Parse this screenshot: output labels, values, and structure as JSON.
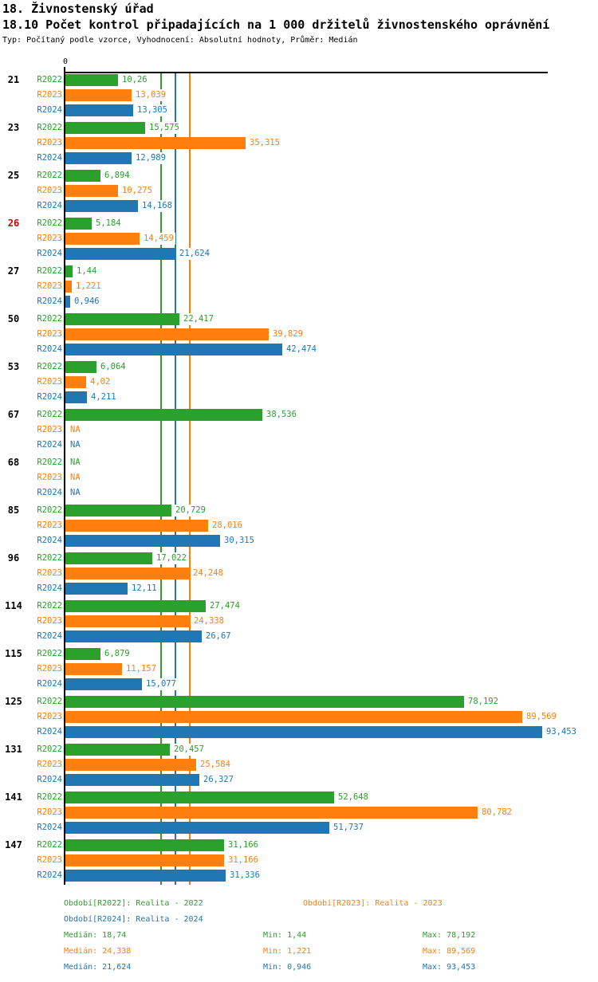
{
  "header": {
    "title": "18. Živnostenský úřad",
    "subtitle": "18.10 Počet kontrol připadajících na 1 000 držitelů živnostenského oprávnění",
    "meta": "Typ: Počítaný podle vzorce, Vyhodnocení: Absolutní hodnoty, Průměr: Medián"
  },
  "colors": {
    "r2022": "#2ca02c",
    "r2023": "#ff7f0e",
    "r2024": "#1f77b4",
    "highlight_group_label": "#d40000",
    "axis": "#000000"
  },
  "chart_data": {
    "type": "bar",
    "orientation": "horizontal",
    "axis_zero_label": "0",
    "xlim": [
      0,
      94.5
    ],
    "grid": false,
    "na_text": "NA",
    "series_names": [
      "R2022",
      "R2023",
      "R2024"
    ],
    "series_colors": [
      "#2ca02c",
      "#ff7f0e",
      "#1f77b4"
    ],
    "median_lines": [
      {
        "series": "R2022",
        "value": 18.74,
        "color": "#2ca02c"
      },
      {
        "series": "R2024",
        "value": 21.624,
        "color": "#1f77b4"
      },
      {
        "series": "R2023",
        "value": 24.338,
        "color": "#ff7f0e"
      }
    ],
    "groups": [
      {
        "label": "21",
        "highlight": false,
        "values": [
          10.26,
          13.039,
          13.305
        ],
        "display": [
          "10,26",
          "13,039",
          "13,305"
        ]
      },
      {
        "label": "23",
        "highlight": false,
        "values": [
          15.575,
          35.315,
          12.989
        ],
        "display": [
          "15,575",
          "35,315",
          "12,989"
        ]
      },
      {
        "label": "25",
        "highlight": false,
        "values": [
          6.894,
          10.275,
          14.168
        ],
        "display": [
          "6,894",
          "10,275",
          "14,168"
        ]
      },
      {
        "label": "26",
        "highlight": true,
        "values": [
          5.184,
          14.459,
          21.624
        ],
        "display": [
          "5,184",
          "14,459",
          "21,624"
        ]
      },
      {
        "label": "27",
        "highlight": false,
        "values": [
          1.44,
          1.221,
          0.946
        ],
        "display": [
          "1,44",
          "1,221",
          "0,946"
        ]
      },
      {
        "label": "50",
        "highlight": false,
        "values": [
          22.417,
          39.829,
          42.474
        ],
        "display": [
          "22,417",
          "39,829",
          "42,474"
        ]
      },
      {
        "label": "53",
        "highlight": false,
        "values": [
          6.064,
          4.02,
          4.211
        ],
        "display": [
          "6,064",
          "4,02",
          "4,211"
        ]
      },
      {
        "label": "67",
        "highlight": false,
        "values": [
          38.536,
          null,
          null
        ],
        "display": [
          "38,536",
          "NA",
          "NA"
        ]
      },
      {
        "label": "68",
        "highlight": false,
        "values": [
          null,
          null,
          null
        ],
        "display": [
          "NA",
          "NA",
          "NA"
        ]
      },
      {
        "label": "85",
        "highlight": false,
        "values": [
          20.729,
          28.016,
          30.315
        ],
        "display": [
          "20,729",
          "28,016",
          "30,315"
        ]
      },
      {
        "label": "96",
        "highlight": false,
        "values": [
          17.022,
          24.248,
          12.11
        ],
        "display": [
          "17,022",
          "24,248",
          "12,11"
        ]
      },
      {
        "label": "114",
        "highlight": false,
        "values": [
          27.474,
          24.338,
          26.67
        ],
        "display": [
          "27,474",
          "24,338",
          "26,67"
        ]
      },
      {
        "label": "115",
        "highlight": false,
        "values": [
          6.879,
          11.157,
          15.077
        ],
        "display": [
          "6,879",
          "11,157",
          "15,077"
        ]
      },
      {
        "label": "125",
        "highlight": false,
        "values": [
          78.192,
          89.569,
          93.453
        ],
        "display": [
          "78,192",
          "89,569",
          "93,453"
        ]
      },
      {
        "label": "131",
        "highlight": false,
        "values": [
          20.457,
          25.584,
          26.327
        ],
        "display": [
          "20,457",
          "25,584",
          "26,327"
        ]
      },
      {
        "label": "141",
        "highlight": false,
        "values": [
          52.648,
          80.782,
          51.737
        ],
        "display": [
          "52,648",
          "80,782",
          "51,737"
        ]
      },
      {
        "label": "147",
        "highlight": false,
        "values": [
          31.166,
          31.166,
          31.336
        ],
        "display": [
          "31,166",
          "31,166",
          "31,336"
        ]
      }
    ]
  },
  "legend": {
    "items": [
      {
        "label": "Období[R2022]: Realita - 2022",
        "color": "#2ca02c"
      },
      {
        "label": "Období[R2023]: Realita - 2023",
        "color": "#ff7f0e"
      },
      {
        "label": "Období[R2024]: Realita - 2024",
        "color": "#1f77b4"
      }
    ],
    "stats": [
      {
        "median": "Medián: 18,74",
        "min": "Min: 1,44",
        "max": "Max: 78,192",
        "color": "#2ca02c"
      },
      {
        "median": "Medián: 24,338",
        "min": "Min: 1,221",
        "max": "Max: 89,569",
        "color": "#ff7f0e"
      },
      {
        "median": "Medián: 21,624",
        "min": "Min: 0,946",
        "max": "Max: 93,453",
        "color": "#1f77b4"
      }
    ]
  }
}
